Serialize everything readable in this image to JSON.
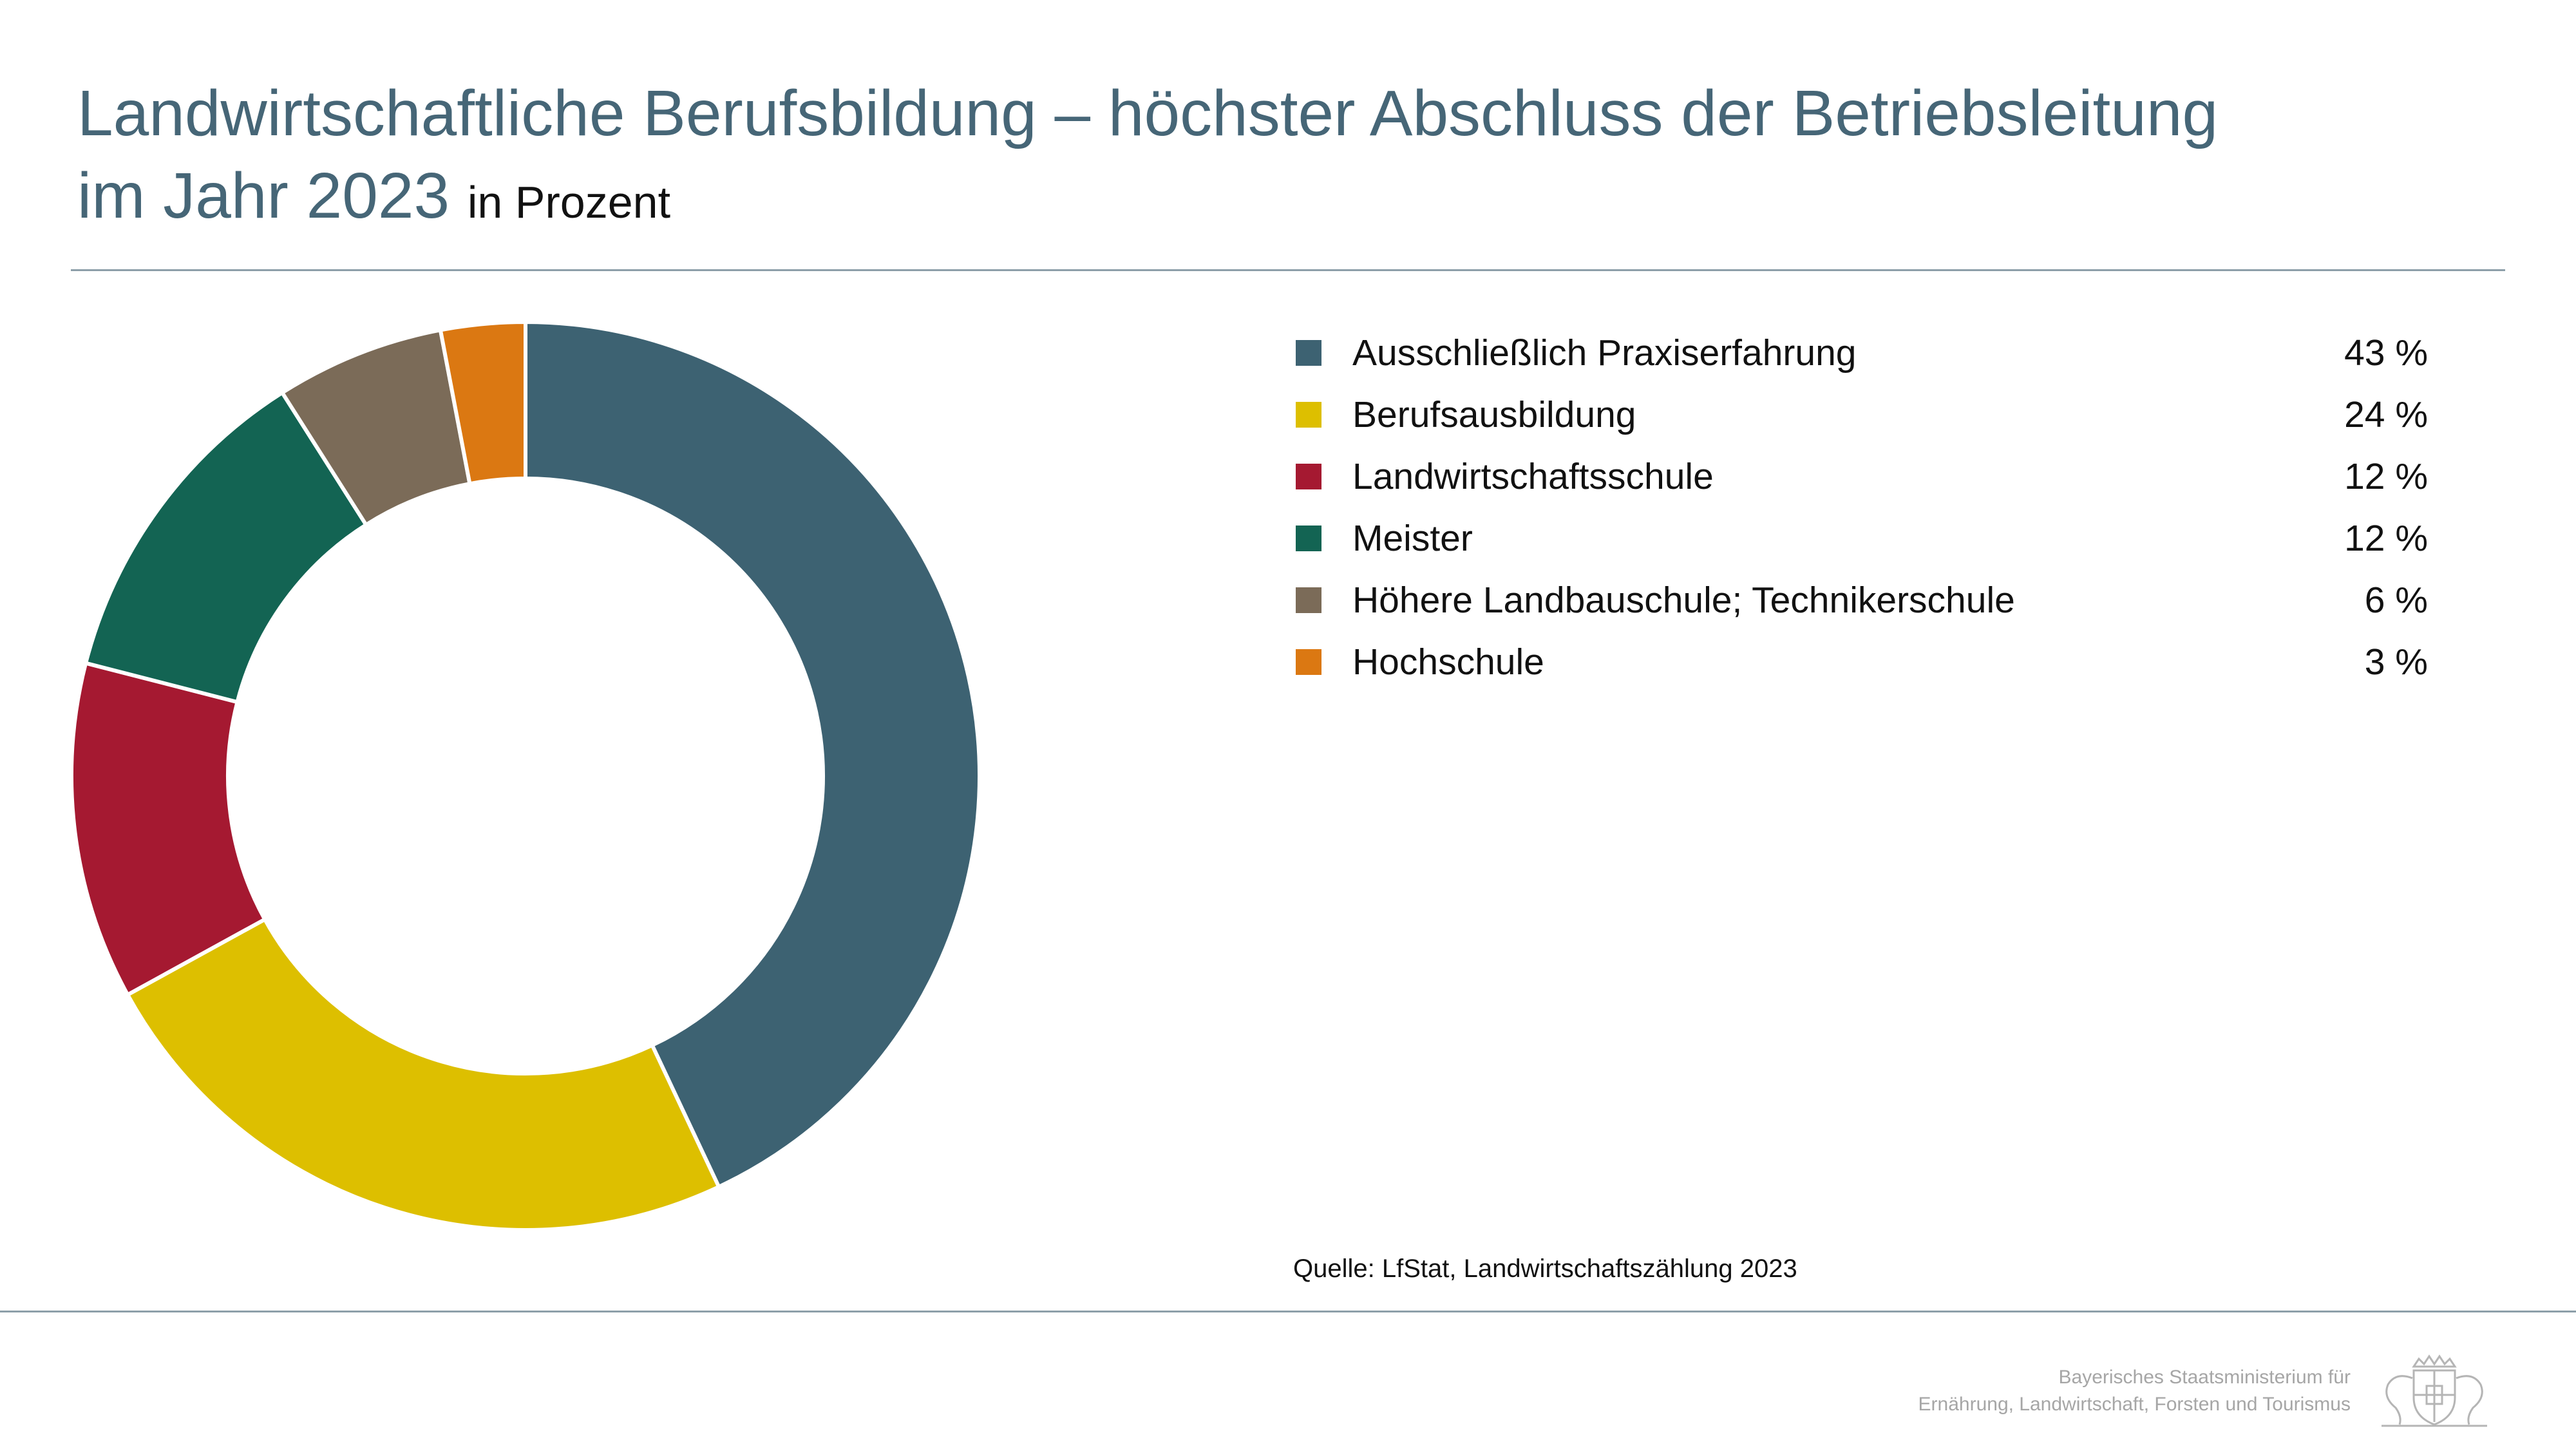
{
  "title": {
    "line1": "Landwirtschaftliche Berufsbildung – höchster Abschluss der Betriebsleitung",
    "line2": "im Jahr 2023",
    "unit": "in Prozent"
  },
  "chart_data": {
    "type": "pie",
    "title": "Landwirtschaftliche Berufsbildung – höchster Abschluss der Betriebsleitung im Jahr 2023",
    "subtitle": "in Prozent",
    "categories": [
      "Ausschließlich Praxiserfahrung",
      "Berufsausbildung",
      "Landwirtschaftsschule",
      "Meister",
      "Höhere Landbauschule; Technikerschule",
      "Hochschule"
    ],
    "values": [
      43,
      24,
      12,
      12,
      6,
      3
    ],
    "value_labels": [
      "43 %",
      "24 %",
      "12 %",
      "12 %",
      "6 %",
      "3 %"
    ],
    "colors": [
      "#3d6272",
      "#ddbf00",
      "#a51931",
      "#136453",
      "#7b6b58",
      "#db7812"
    ],
    "legend": "right"
  },
  "source": "Quelle: LfStat, Landwirtschaftszählung 2023",
  "ministry": {
    "line1": "Bayerisches Staatsministerium für",
    "line2": "Ernährung, Landwirtschaft, Forsten und Tourismus"
  },
  "icons": {
    "crest": "bavarian-coat-of-arms-icon"
  }
}
